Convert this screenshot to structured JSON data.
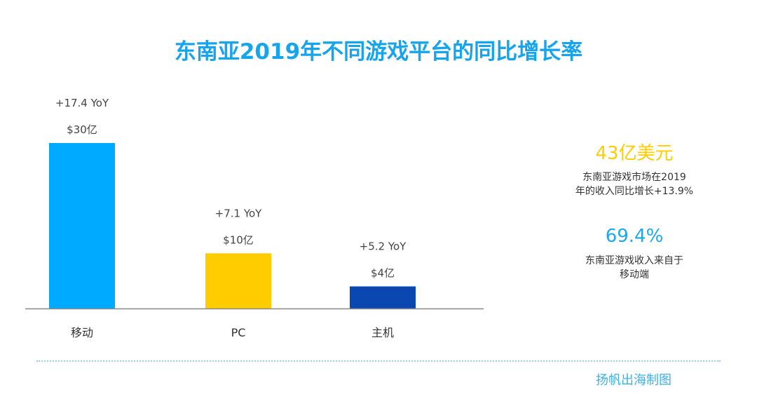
{
  "title": "东南亚2019年不同游戏平台的同比增长率",
  "chart_data": {
    "type": "bar",
    "title": "东南亚2019年不同游戏平台的同比增长率",
    "categories": [
      "移动",
      "PC",
      "主机"
    ],
    "values": [
      30,
      10,
      4
    ],
    "value_labels": [
      "$30亿",
      "$10亿",
      "$4亿"
    ],
    "yoy_labels": [
      "+17.4 YoY",
      "+7.1 YoY",
      "+5.2 YoY"
    ],
    "colors": [
      "#00aaff",
      "#ffcc00",
      "#0a47b0"
    ],
    "unit": "亿美元",
    "ylim": [
      0,
      30
    ],
    "grid": false
  },
  "stats": [
    {
      "value": "43亿美元",
      "color": "#ffcc00",
      "desc_lines": [
        "东南亚游戏市场在2019",
        "年的收入同比增长+13.9%"
      ]
    },
    {
      "value": "69.4%",
      "color": "#1aa8ef",
      "desc_lines": [
        "东南亚游戏收入来自于",
        "移动端"
      ]
    }
  ],
  "credit": "扬帆出海制图"
}
